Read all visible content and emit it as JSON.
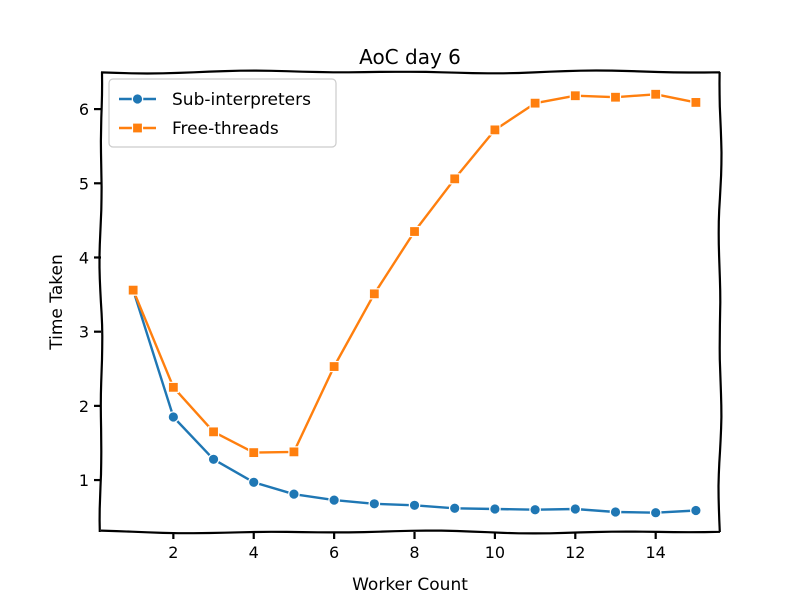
{
  "chart_data": {
    "type": "line",
    "title": "AoC day 6",
    "xlabel": "Worker Count",
    "ylabel": "Time Taken",
    "xlim": [
      0.2,
      15.6
    ],
    "ylim": [
      0.3,
      6.5
    ],
    "xticks": [
      2,
      4,
      6,
      8,
      10,
      12,
      14
    ],
    "yticks": [
      1,
      2,
      3,
      4,
      5,
      6
    ],
    "grid": false,
    "legend_position": "top-left",
    "x": [
      1,
      2,
      3,
      4,
      5,
      6,
      7,
      8,
      9,
      10,
      11,
      12,
      13,
      14,
      15
    ],
    "series": [
      {
        "name": "Sub-interpreters",
        "color": "#1f77b4",
        "marker": "circle",
        "values": [
          3.56,
          1.85,
          1.28,
          0.97,
          0.81,
          0.73,
          0.68,
          0.66,
          0.62,
          0.61,
          0.6,
          0.61,
          0.57,
          0.56,
          0.59
        ]
      },
      {
        "name": "Free-threads",
        "color": "#ff7f0e",
        "marker": "square",
        "values": [
          3.56,
          2.25,
          1.65,
          1.37,
          1.38,
          2.53,
          3.51,
          4.35,
          5.06,
          5.72,
          6.08,
          6.18,
          6.16,
          6.2,
          6.09
        ]
      }
    ]
  }
}
